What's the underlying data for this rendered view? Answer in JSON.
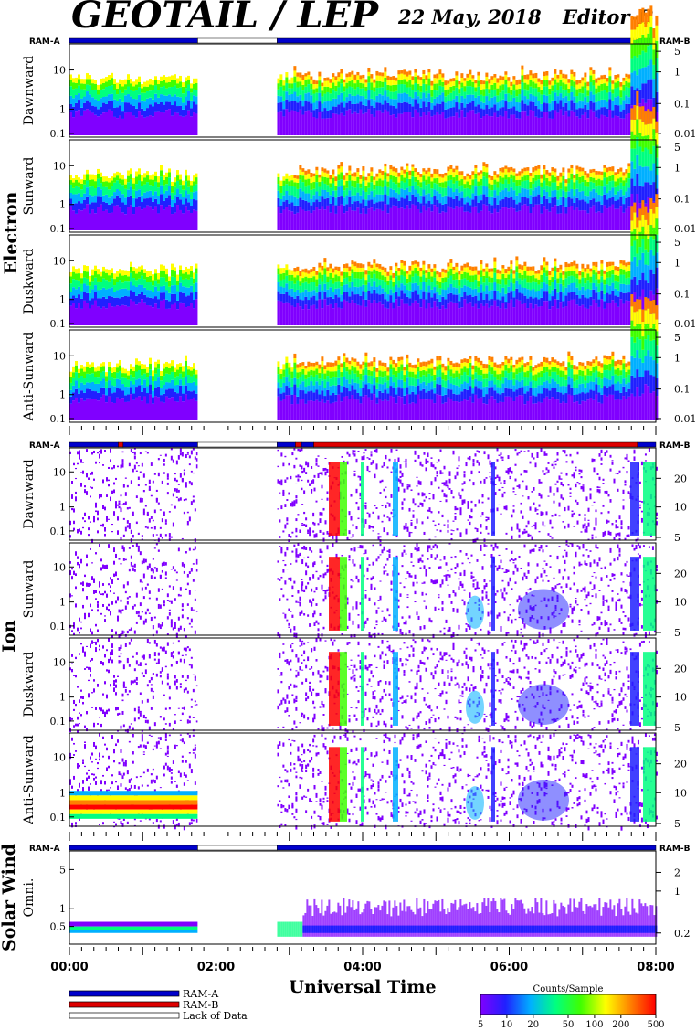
{
  "header": {
    "title": "GEOTAIL / LEP",
    "date": "22 May, 2018",
    "edition": "Editor-B"
  },
  "colors": {
    "ram_a": "#0000cc",
    "ram_b": "#dd0000",
    "lack": "#ffffff",
    "spectrum": [
      "#8000ff",
      "#2020ff",
      "#00b0ff",
      "#00ff80",
      "#40ff00",
      "#ffff00",
      "#ff8000",
      "#ff0000"
    ]
  },
  "chart_data": {
    "type": "heatmap",
    "xlabel": "Universal Time",
    "x_ticks": [
      "00:00",
      "02:00",
      "04:00",
      "06:00",
      "08:00"
    ],
    "xlim": [
      "00:00",
      "08:00"
    ],
    "groups": [
      {
        "name": "Electron",
        "ram_left": "RAM-A",
        "ram_right": "RAM-B",
        "panels": [
          {
            "name": "Dawnward",
            "left_ticks": [
              "10",
              "1",
              "0.1"
            ],
            "right_ticks": [
              "5",
              "1",
              "0.1",
              "0.01"
            ]
          },
          {
            "name": "Sunward",
            "left_ticks": [
              "10",
              "1",
              "0.1"
            ],
            "right_ticks": [
              "5",
              "1",
              "0.1",
              "0.01"
            ]
          },
          {
            "name": "Duskward",
            "left_ticks": [
              "10",
              "1",
              "0.1"
            ],
            "right_ticks": [
              "5",
              "1",
              "0.1",
              "0.01"
            ]
          },
          {
            "name": "Anti-Sunward",
            "left_ticks": [
              "10",
              "1",
              "0.1"
            ],
            "right_ticks": [
              "5",
              "1",
              "0.1",
              "0.01"
            ]
          }
        ],
        "mode_segments": [
          {
            "start": "00:00",
            "end": "01:45",
            "mode": "RAM-A"
          },
          {
            "start": "01:45",
            "end": "02:50",
            "mode": "Lack of Data"
          },
          {
            "start": "02:50",
            "end": "08:00",
            "mode": "RAM-A"
          }
        ]
      },
      {
        "name": "Ion",
        "ram_left": "RAM-A",
        "ram_right": "RAM-B",
        "panels": [
          {
            "name": "Dawnward",
            "left_ticks": [
              "10",
              "1",
              "0.1"
            ],
            "right_ticks": [
              "20",
              "10",
              "5"
            ]
          },
          {
            "name": "Sunward",
            "left_ticks": [
              "10",
              "1",
              "0.1"
            ],
            "right_ticks": [
              "20",
              "10",
              "5"
            ]
          },
          {
            "name": "Duskward",
            "left_ticks": [
              "10",
              "1",
              "0.1"
            ],
            "right_ticks": [
              "20",
              "10",
              "5"
            ]
          },
          {
            "name": "Anti-Sunward",
            "left_ticks": [
              "10",
              "1",
              "0.1"
            ],
            "right_ticks": [
              "20",
              "10",
              "5"
            ]
          }
        ],
        "mode_segments": [
          {
            "start": "00:00",
            "end": "00:40",
            "mode": "RAM-A"
          },
          {
            "start": "00:40",
            "end": "00:44",
            "mode": "RAM-B"
          },
          {
            "start": "00:44",
            "end": "01:45",
            "mode": "RAM-A"
          },
          {
            "start": "01:45",
            "end": "02:50",
            "mode": "Lack of Data"
          },
          {
            "start": "02:50",
            "end": "03:05",
            "mode": "RAM-A"
          },
          {
            "start": "03:05",
            "end": "03:10",
            "mode": "RAM-B"
          },
          {
            "start": "03:10",
            "end": "03:20",
            "mode": "RAM-A"
          },
          {
            "start": "03:20",
            "end": "07:45",
            "mode": "RAM-B"
          },
          {
            "start": "07:45",
            "end": "08:00",
            "mode": "RAM-A"
          }
        ]
      },
      {
        "name": "Solar Wind",
        "ram_left": "RAM-A",
        "ram_right": "RAM-B",
        "panels": [
          {
            "name": "Omni.",
            "left_ticks": [
              "5",
              "1",
              "0.5"
            ],
            "right_ticks": [
              "2",
              "1",
              "0.2"
            ]
          }
        ],
        "mode_segments": [
          {
            "start": "00:00",
            "end": "01:45",
            "mode": "RAM-A"
          },
          {
            "start": "01:45",
            "end": "02:50",
            "mode": "Lack of Data"
          },
          {
            "start": "02:50",
            "end": "08:00",
            "mode": "RAM-A"
          }
        ]
      }
    ],
    "legend": {
      "items": [
        {
          "label": "RAM-A",
          "color": "#0000cc"
        },
        {
          "label": "RAM-B",
          "color": "#dd0000"
        },
        {
          "label": "Lack of Data",
          "color": "#ffffff"
        }
      ]
    },
    "colorbar": {
      "title": "Counts/Sample",
      "ticks": [
        "5",
        "10",
        "20",
        "50",
        "100",
        "200",
        "500"
      ],
      "range": [
        5,
        500
      ],
      "scale": "log"
    }
  }
}
